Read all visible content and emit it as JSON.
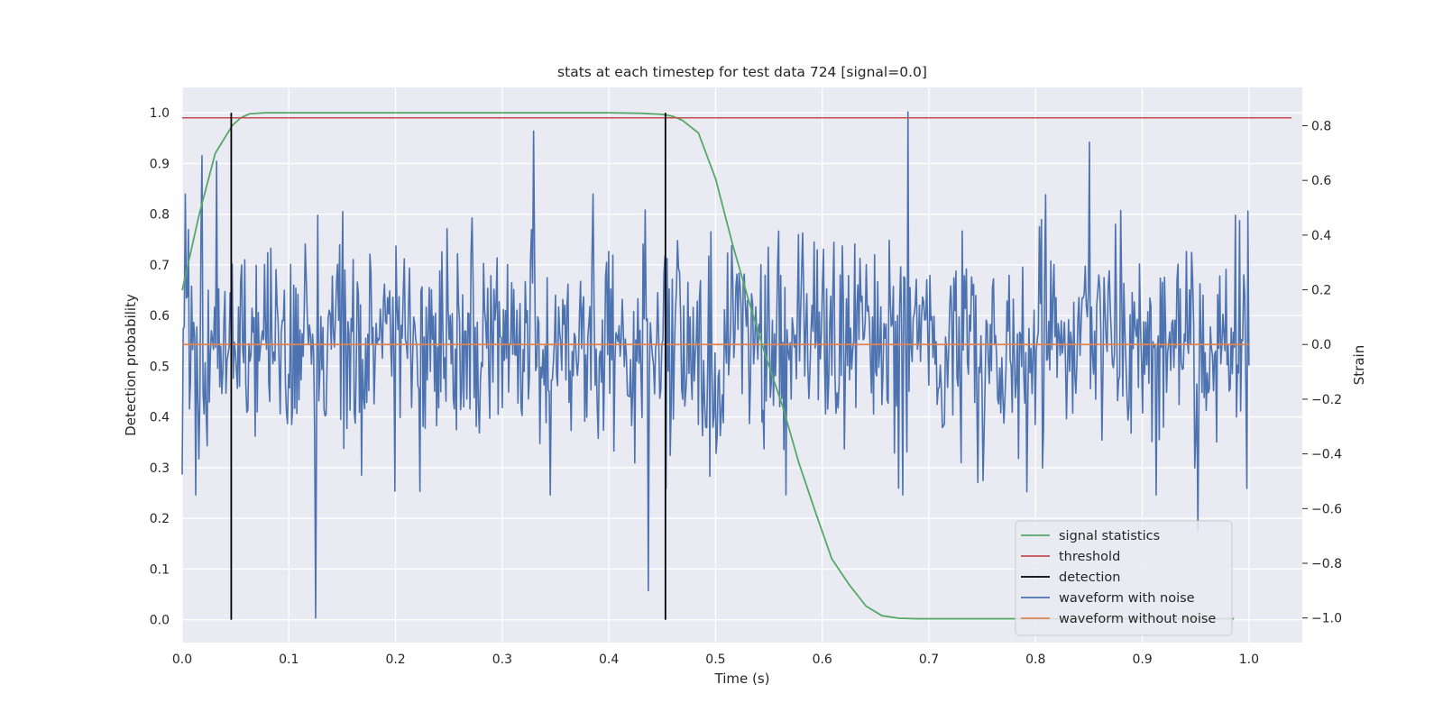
{
  "chart_data": {
    "type": "line",
    "title": "stats at each timestep for test data 724 [signal=0.0]",
    "xlabel": "Time (s)",
    "ylabel": "Detection probability",
    "y2label": "Strain",
    "xlim": [
      0.0,
      1.05
    ],
    "ylim": [
      -0.045,
      1.05
    ],
    "y2lim": [
      -1.09,
      0.94
    ],
    "xticks": [
      "0.0",
      "0.1",
      "0.2",
      "0.3",
      "0.4",
      "0.5",
      "0.6",
      "0.7",
      "0.8",
      "0.9",
      "1.0"
    ],
    "yticks": [
      "0.0",
      "0.1",
      "0.2",
      "0.3",
      "0.4",
      "0.5",
      "0.6",
      "0.7",
      "0.8",
      "0.9",
      "1.0"
    ],
    "y2ticks": [
      "−1.0",
      "−0.8",
      "−0.6",
      "−0.4",
      "−0.2",
      "0.0",
      "0.2",
      "0.4",
      "0.6",
      "0.8"
    ],
    "grid": true,
    "legend_position": "lower-right",
    "colors": {
      "signal_statistics": "#55a868",
      "threshold": "#c44e52",
      "detection": "#000000",
      "waveform_with_noise": "#4c72b0",
      "waveform_without_noise": "#dd8452",
      "plot_background": "#eaeaf2",
      "grid": "#ffffff"
    },
    "series": [
      {
        "name": "signal statistics",
        "axis": "left",
        "x": [
          0.0,
          0.016,
          0.031,
          0.047,
          0.055,
          0.063,
          0.078,
          0.1,
          0.2,
          0.3,
          0.4,
          0.43,
          0.45,
          0.46,
          0.469,
          0.484,
          0.5,
          0.516,
          0.531,
          0.547,
          0.563,
          0.578,
          0.594,
          0.609,
          0.625,
          0.641,
          0.656,
          0.672,
          0.688,
          0.75,
          0.8,
          0.9,
          0.986
        ],
        "y": [
          0.65,
          0.8,
          0.92,
          0.975,
          0.99,
          0.998,
          1.0,
          1.0,
          1.0,
          1.0,
          1.0,
          0.999,
          0.997,
          0.993,
          0.985,
          0.96,
          0.87,
          0.74,
          0.63,
          0.52,
          0.42,
          0.31,
          0.21,
          0.12,
          0.07,
          0.027,
          0.008,
          0.003,
          0.002,
          0.002,
          0.002,
          0.002,
          0.002
        ]
      },
      {
        "name": "threshold",
        "axis": "left",
        "x": [
          0.0,
          1.04
        ],
        "y": [
          0.99,
          0.99
        ]
      },
      {
        "name": "detection",
        "axis": "left",
        "segments": [
          {
            "x": 0.046,
            "y": [
              0.0,
              1.0
            ]
          },
          {
            "x": 0.453,
            "y": [
              0.0,
              1.0
            ]
          }
        ]
      },
      {
        "name": "waveform with noise",
        "axis": "right",
        "x_range": [
          0.0,
          1.0
        ],
        "samples": 1024,
        "summary": "noise fluctuating around 0, mostly within ±0.5",
        "peaks": [
          {
            "x": 0.125,
            "y": -1.0
          },
          {
            "x": 0.329,
            "y": 0.78
          },
          {
            "x": 0.437,
            "y": -0.9
          },
          {
            "x": 0.68,
            "y": 0.85
          },
          {
            "x": 0.952,
            "y": -0.68
          },
          {
            "x": 0.85,
            "y": 0.74
          },
          {
            "x": 0.019,
            "y": 0.69
          },
          {
            "x": 0.032,
            "y": 0.67
          }
        ]
      },
      {
        "name": "waveform without noise",
        "axis": "right",
        "x": [
          0.0,
          1.0
        ],
        "y": [
          0.0,
          0.0
        ]
      }
    ]
  }
}
